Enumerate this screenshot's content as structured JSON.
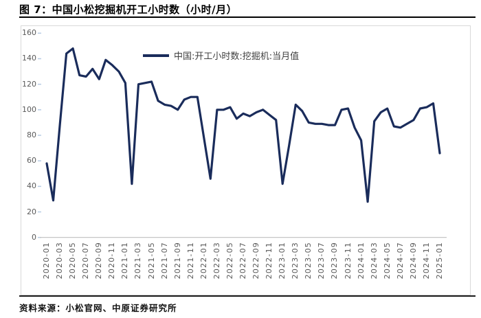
{
  "header": {
    "title": "图 7：中国小松挖掘机开工小时数（小时/月）"
  },
  "legend": {
    "series_label": "中国:开工小时数:挖掘机:当月值"
  },
  "footer": {
    "source": "资料来源：小松官网、中原证券研究所"
  },
  "colors": {
    "line": "#1A2C5B",
    "axis_text": "#595959",
    "tick_mark": "#B8CCE4",
    "axis_line": "#BFBFBF",
    "chart_border": "#D8D8D8"
  },
  "chart_data": {
    "type": "line",
    "title": "图 7：中国小松挖掘机开工小时数（小时/月）",
    "series_name": "中国:开工小时数:挖掘机:当月值",
    "xlabel": "",
    "ylabel": "",
    "ylim": [
      0,
      160
    ],
    "yticks": [
      160,
      140,
      120,
      100,
      80,
      60,
      40,
      20,
      0
    ],
    "xtick_every": 2,
    "grid": false,
    "legend_position": "top-center",
    "line_color": "#1A2C5B",
    "x": [
      "2020-01",
      "2020-02",
      "2020-03",
      "2020-04",
      "2020-05",
      "2020-06",
      "2020-07",
      "2020-08",
      "2020-09",
      "2020-10",
      "2020-11",
      "2020-12",
      "2021-01",
      "2021-02",
      "2021-03",
      "2021-04",
      "2021-05",
      "2021-06",
      "2021-07",
      "2021-08",
      "2021-09",
      "2021-10",
      "2021-11",
      "2021-12",
      "2022-01",
      "2022-02",
      "2022-03",
      "2022-04",
      "2022-05",
      "2022-06",
      "2022-07",
      "2022-08",
      "2022-09",
      "2022-10",
      "2022-11",
      "2022-12",
      "2023-01",
      "2023-02",
      "2023-03",
      "2023-04",
      "2023-05",
      "2023-06",
      "2023-07",
      "2023-08",
      "2023-09",
      "2023-10",
      "2023-11",
      "2023-12",
      "2024-01",
      "2024-02",
      "2024-03",
      "2024-04",
      "2024-05",
      "2024-06",
      "2024-07",
      "2024-08",
      "2024-09",
      "2024-10",
      "2024-11",
      "2024-12",
      "2025-01"
    ],
    "values": [
      58,
      29,
      88,
      144,
      148,
      127,
      126,
      132,
      124,
      139,
      135,
      130,
      121,
      42,
      120,
      121,
      122,
      107,
      104,
      103,
      100,
      108,
      110,
      110,
      78,
      46,
      100,
      100,
      102,
      93,
      97,
      95,
      98,
      100,
      96,
      92,
      42,
      72,
      104,
      99,
      90,
      89,
      89,
      88,
      88,
      100,
      101,
      86,
      76,
      28,
      91,
      98,
      101,
      87,
      86,
      89,
      92,
      101,
      102,
      105,
      66
    ]
  }
}
